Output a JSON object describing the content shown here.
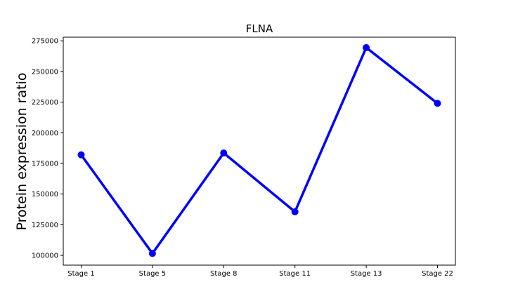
{
  "chart_data": {
    "type": "line",
    "title": "FLNA",
    "xlabel": "",
    "ylabel": "Protein expression ratio",
    "categories": [
      "Stage 1",
      "Stage 5",
      "Stage 8",
      "Stage 11",
      "Stage 13",
      "Stage 22"
    ],
    "series": [
      {
        "values": [
          182000,
          101500,
          183500,
          135500,
          269500,
          224000
        ],
        "color": "#0000ff",
        "marker": "circle"
      }
    ],
    "yticks": [
      100000,
      125000,
      150000,
      175000,
      200000,
      225000,
      250000,
      275000
    ],
    "ytick_labels": [
      "100000",
      "125000",
      "150000",
      "175000",
      "200000",
      "225000",
      "250000",
      "275000"
    ],
    "ylim": [
      92000,
      278000
    ],
    "grid": false,
    "legend": "none"
  }
}
